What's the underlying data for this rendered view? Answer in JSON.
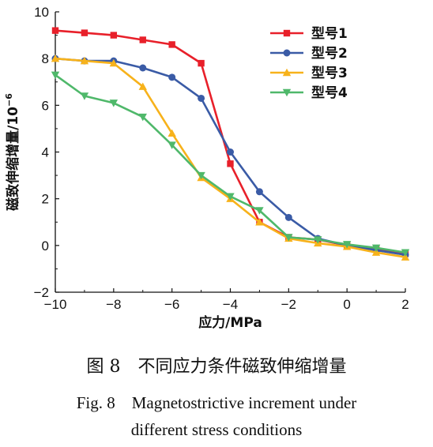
{
  "chart_data": {
    "type": "line",
    "title": "",
    "xlabel": "应力/MPa",
    "ylabel": "磁致伸缩增量/10",
    "ylabel_exponent": "−6",
    "xlim": [
      -10,
      2
    ],
    "ylim": [
      -2,
      10
    ],
    "xticks": [
      "−10",
      "−8",
      "−6",
      "−4",
      "−2",
      "0",
      "2"
    ],
    "yticks": [
      "−2",
      "0",
      "2",
      "4",
      "6",
      "8",
      "10"
    ],
    "legend_position": "top-right",
    "series": [
      {
        "name": "型号1",
        "color": "#e8202a",
        "marker": "square",
        "x": [
          -10,
          -9,
          -8,
          -7,
          -6,
          -5,
          -4,
          -3,
          -2,
          -1,
          0,
          1,
          2
        ],
        "y": [
          9.2,
          9.1,
          9.0,
          8.8,
          8.6,
          7.8,
          3.5,
          1.0,
          0.35,
          0.25,
          0.0,
          -0.15,
          -0.35
        ]
      },
      {
        "name": "型号2",
        "color": "#3a5ba6",
        "marker": "circle",
        "x": [
          -10,
          -9,
          -8,
          -7,
          -6,
          -5,
          -4,
          -3,
          -2,
          -1,
          0,
          1,
          2
        ],
        "y": [
          8.0,
          7.9,
          7.9,
          7.6,
          7.2,
          6.3,
          4.0,
          2.3,
          1.2,
          0.3,
          0.0,
          -0.2,
          -0.4
        ]
      },
      {
        "name": "型号3",
        "color": "#f7b21b",
        "marker": "triangle-up",
        "x": [
          -10,
          -9,
          -8,
          -7,
          -6,
          -5,
          -4,
          -3,
          -2,
          -1,
          0,
          1,
          2
        ],
        "y": [
          8.0,
          7.9,
          7.8,
          6.8,
          4.8,
          2.9,
          2.0,
          1.0,
          0.3,
          0.1,
          -0.05,
          -0.3,
          -0.5
        ]
      },
      {
        "name": "型号4",
        "color": "#4fb86a",
        "marker": "triangle-down",
        "x": [
          -10,
          -9,
          -8,
          -7,
          -6,
          -5,
          -4,
          -3,
          -2,
          -1,
          0,
          1,
          2
        ],
        "y": [
          7.3,
          6.4,
          6.1,
          5.5,
          4.3,
          3.0,
          2.1,
          1.5,
          0.35,
          0.25,
          0.05,
          -0.1,
          -0.3
        ]
      }
    ]
  },
  "caption": {
    "cn": "图 8　不同应力条件磁致伸缩增量",
    "en_line1": "Fig. 8　Magnetostrictive increment under",
    "en_line2": "different stress conditions"
  }
}
